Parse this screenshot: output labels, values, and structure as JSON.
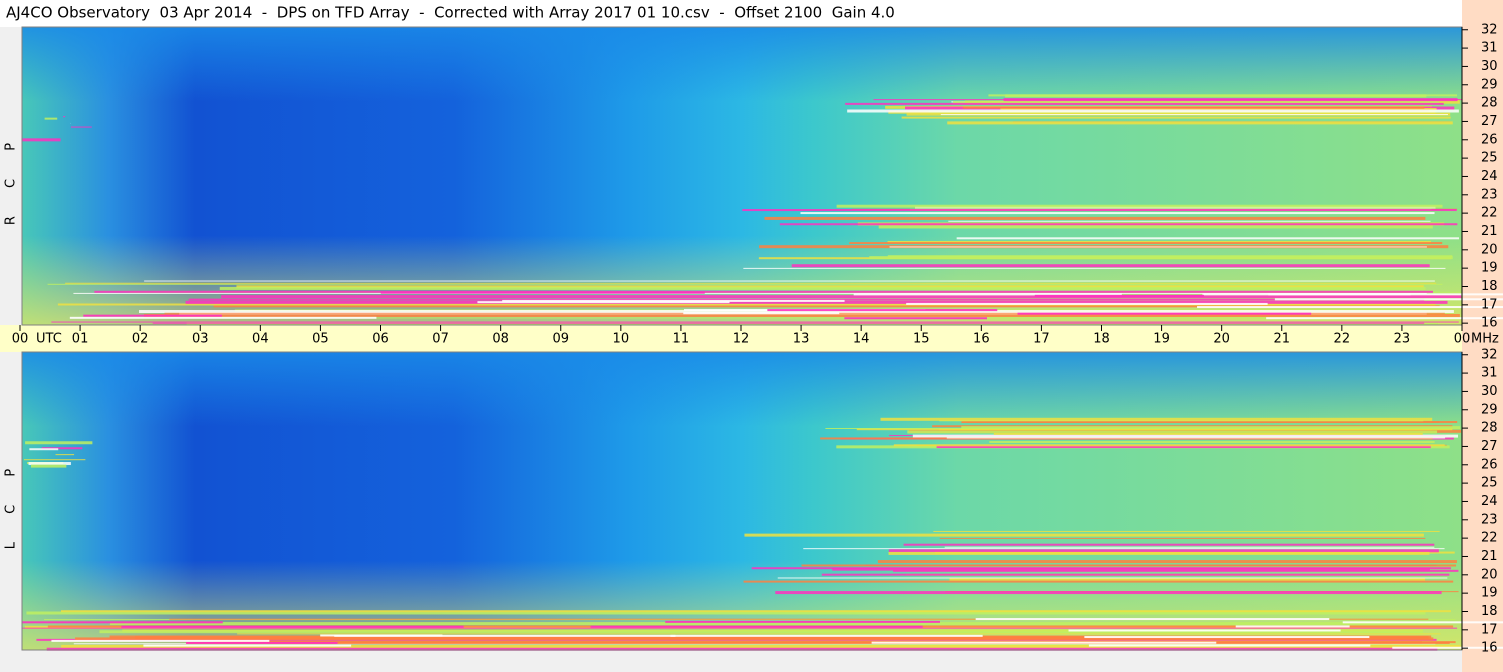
{
  "title": "AJ4CO Observatory  03 Apr 2014  -  DPS on TFD Array  -  Corrected with Array 2017 01 10.csv  -  Offset 2100  Gain 4.0",
  "panels": [
    {
      "label": "R C P"
    },
    {
      "label": "L C P"
    }
  ],
  "x_axis": {
    "unit": "UTC",
    "ticks": [
      "00",
      "01",
      "02",
      "03",
      "04",
      "05",
      "06",
      "07",
      "08",
      "09",
      "10",
      "11",
      "12",
      "13",
      "14",
      "15",
      "16",
      "17",
      "18",
      "19",
      "20",
      "21",
      "22",
      "23",
      "00"
    ]
  },
  "y_axis": {
    "unit": "MHz",
    "ylim": [
      15.9,
      32.15
    ],
    "yticks": [
      16,
      17,
      18,
      19,
      20,
      21,
      22,
      23,
      24,
      25,
      26,
      27,
      28,
      29,
      30,
      31,
      32
    ]
  }
}
